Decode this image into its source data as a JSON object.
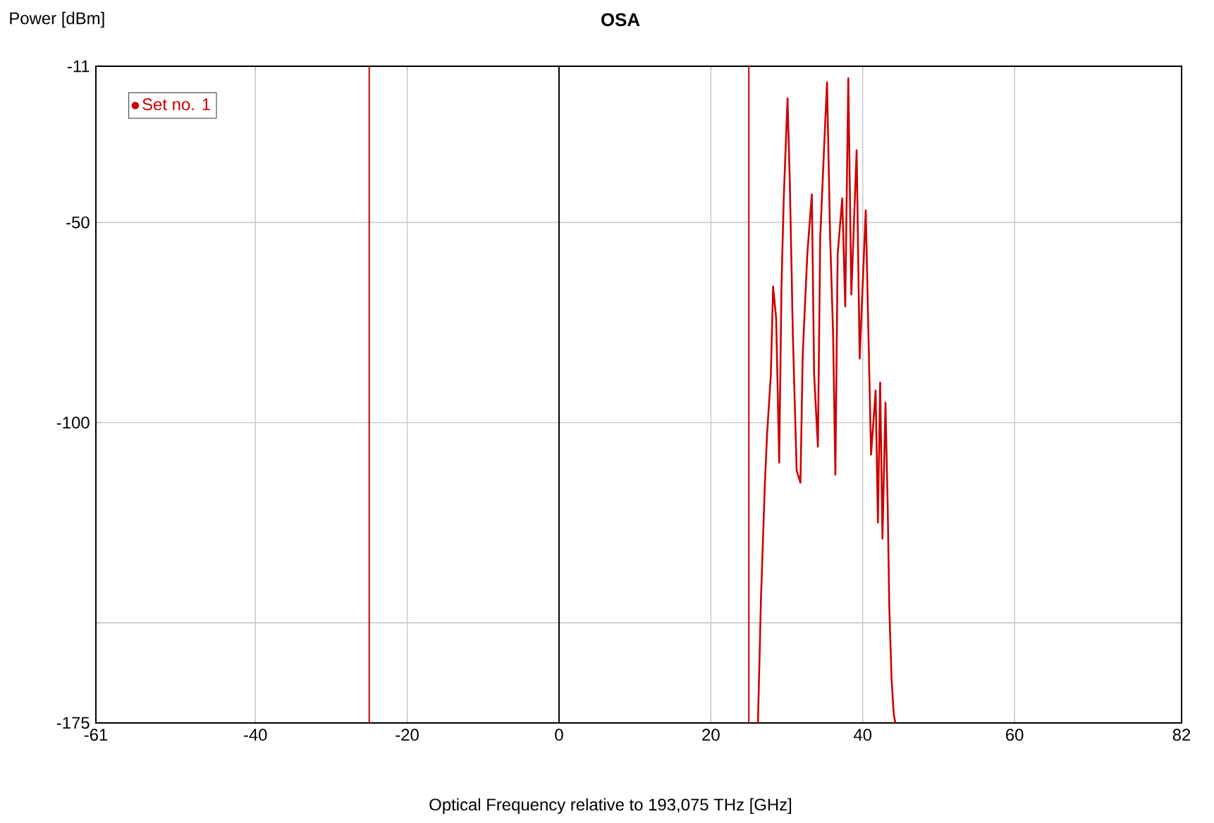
{
  "chart_data": {
    "type": "line",
    "title": "OSA",
    "xlabel": "Optical Frequency relative to 193,075 THz [GHz]",
    "ylabel": "Power [dBm]",
    "xlim": [
      -61,
      82
    ],
    "ylim": [
      -175,
      -11
    ],
    "xticks": [
      -61,
      -40,
      -20,
      0,
      20,
      40,
      60,
      82
    ],
    "yticks": [
      -175,
      {
        "value": -150,
        "label": null
      },
      -100,
      -50,
      -11
    ],
    "grid": true,
    "legend": "top left",
    "ref_lines": [
      {
        "axis": "x",
        "value": -25,
        "color": "#cc0000"
      },
      {
        "axis": "x",
        "value": 25,
        "color": "#cc0000"
      },
      {
        "axis": "x",
        "value": 0,
        "color": "#000000"
      }
    ],
    "series": [
      {
        "name": "Set no. 1",
        "color": "#cc0000",
        "x": [
          26.2,
          26.6,
          27.1,
          27.4,
          27.9,
          28.2,
          28.6,
          29.0,
          29.3,
          29.6,
          30.1,
          30.4,
          30.8,
          31.3,
          31.8,
          32.1,
          32.7,
          33.3,
          33.6,
          34.1,
          34.4,
          34.9,
          35.3,
          35.7,
          36.1,
          36.4,
          36.7,
          37.3,
          37.7,
          38.1,
          38.5,
          39.2,
          39.6,
          40.4,
          41.1,
          41.7,
          42.0,
          42.3,
          42.6,
          43.0,
          43.3,
          43.5,
          43.8,
          44.1,
          44.3
        ],
        "values": [
          -175,
          -144,
          -116,
          -103,
          -88,
          -66,
          -74,
          -110,
          -66,
          -44,
          -19,
          -40,
          -78,
          -112,
          -115,
          -83,
          -58,
          -43,
          -88,
          -106,
          -54,
          -32,
          -15,
          -53,
          -78,
          -113,
          -58,
          -44,
          -71,
          -14,
          -68,
          -32,
          -84,
          -47,
          -108,
          -92,
          -125,
          -90,
          -129,
          -95,
          -122,
          -146,
          -164,
          -173,
          -175
        ]
      }
    ]
  }
}
